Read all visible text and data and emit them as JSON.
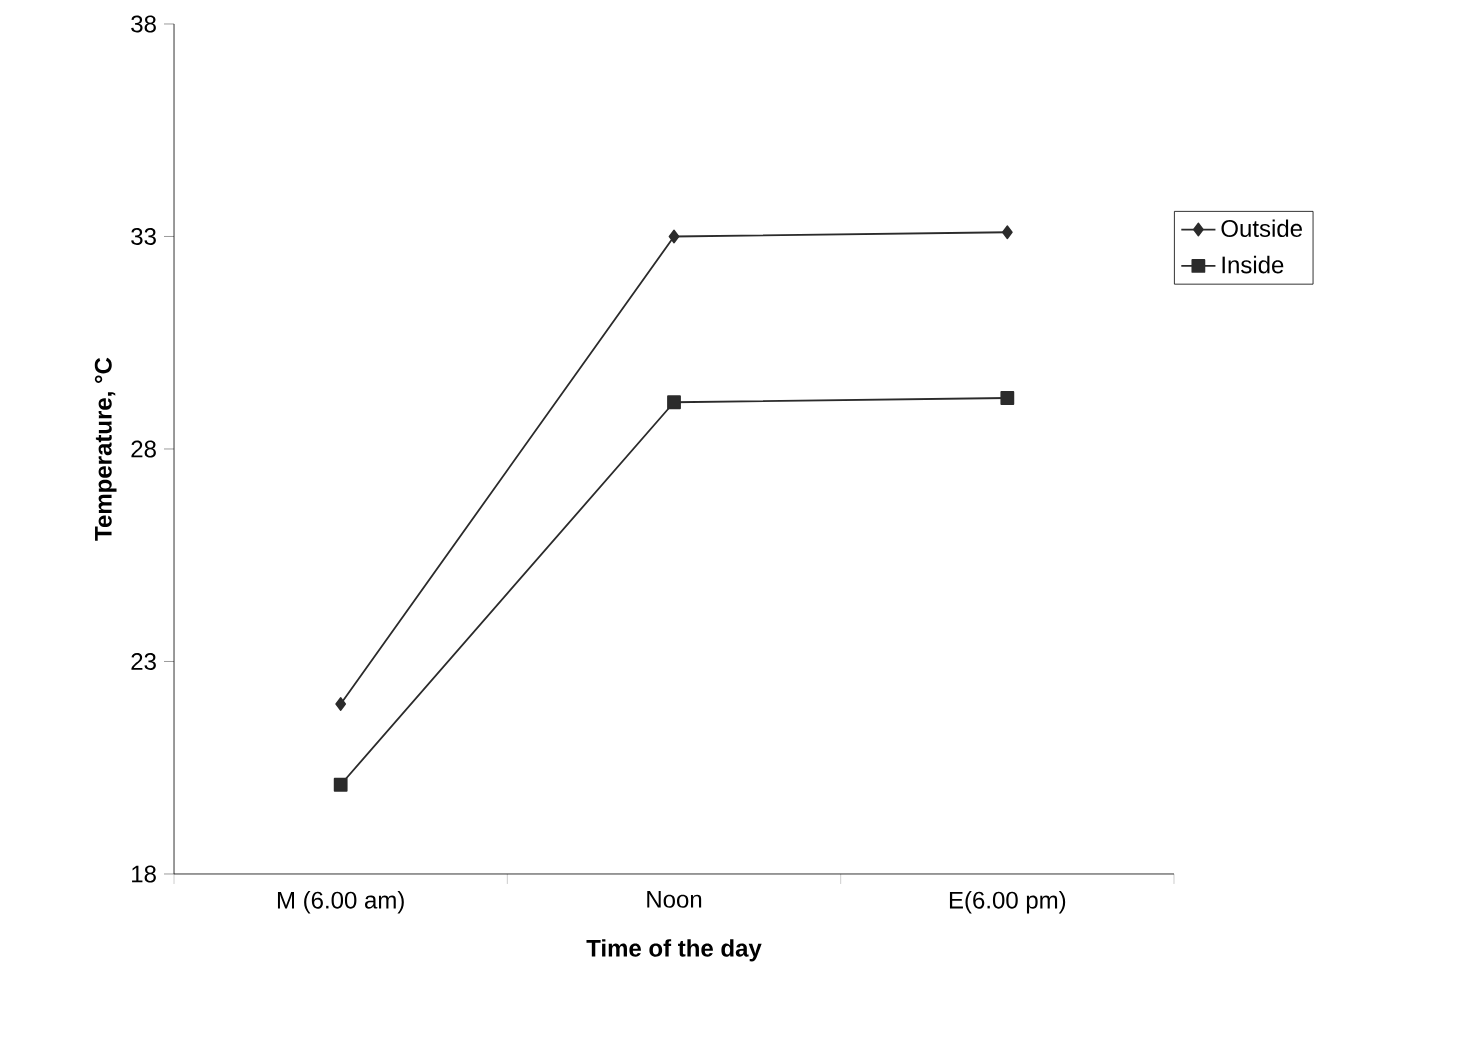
{
  "chart_data": {
    "type": "line",
    "xlabel": "Time of the day",
    "ylabel": "Temperature, °C",
    "categories": [
      "M (6.00 am)",
      "Noon",
      "E(6.00 pm)"
    ],
    "series": [
      {
        "name": "Outside",
        "color": "#2b2b2b",
        "marker": "diamond",
        "values": [
          22,
          33,
          33.1
        ]
      },
      {
        "name": "Inside",
        "color": "#2b2b2b",
        "marker": "square",
        "values": [
          20.1,
          29.1,
          29.2
        ]
      }
    ],
    "ylim": [
      18,
      38
    ],
    "yticks": [
      18,
      23,
      28,
      33,
      38
    ],
    "grid": false,
    "legend": "right",
    "line_style": "solid"
  }
}
